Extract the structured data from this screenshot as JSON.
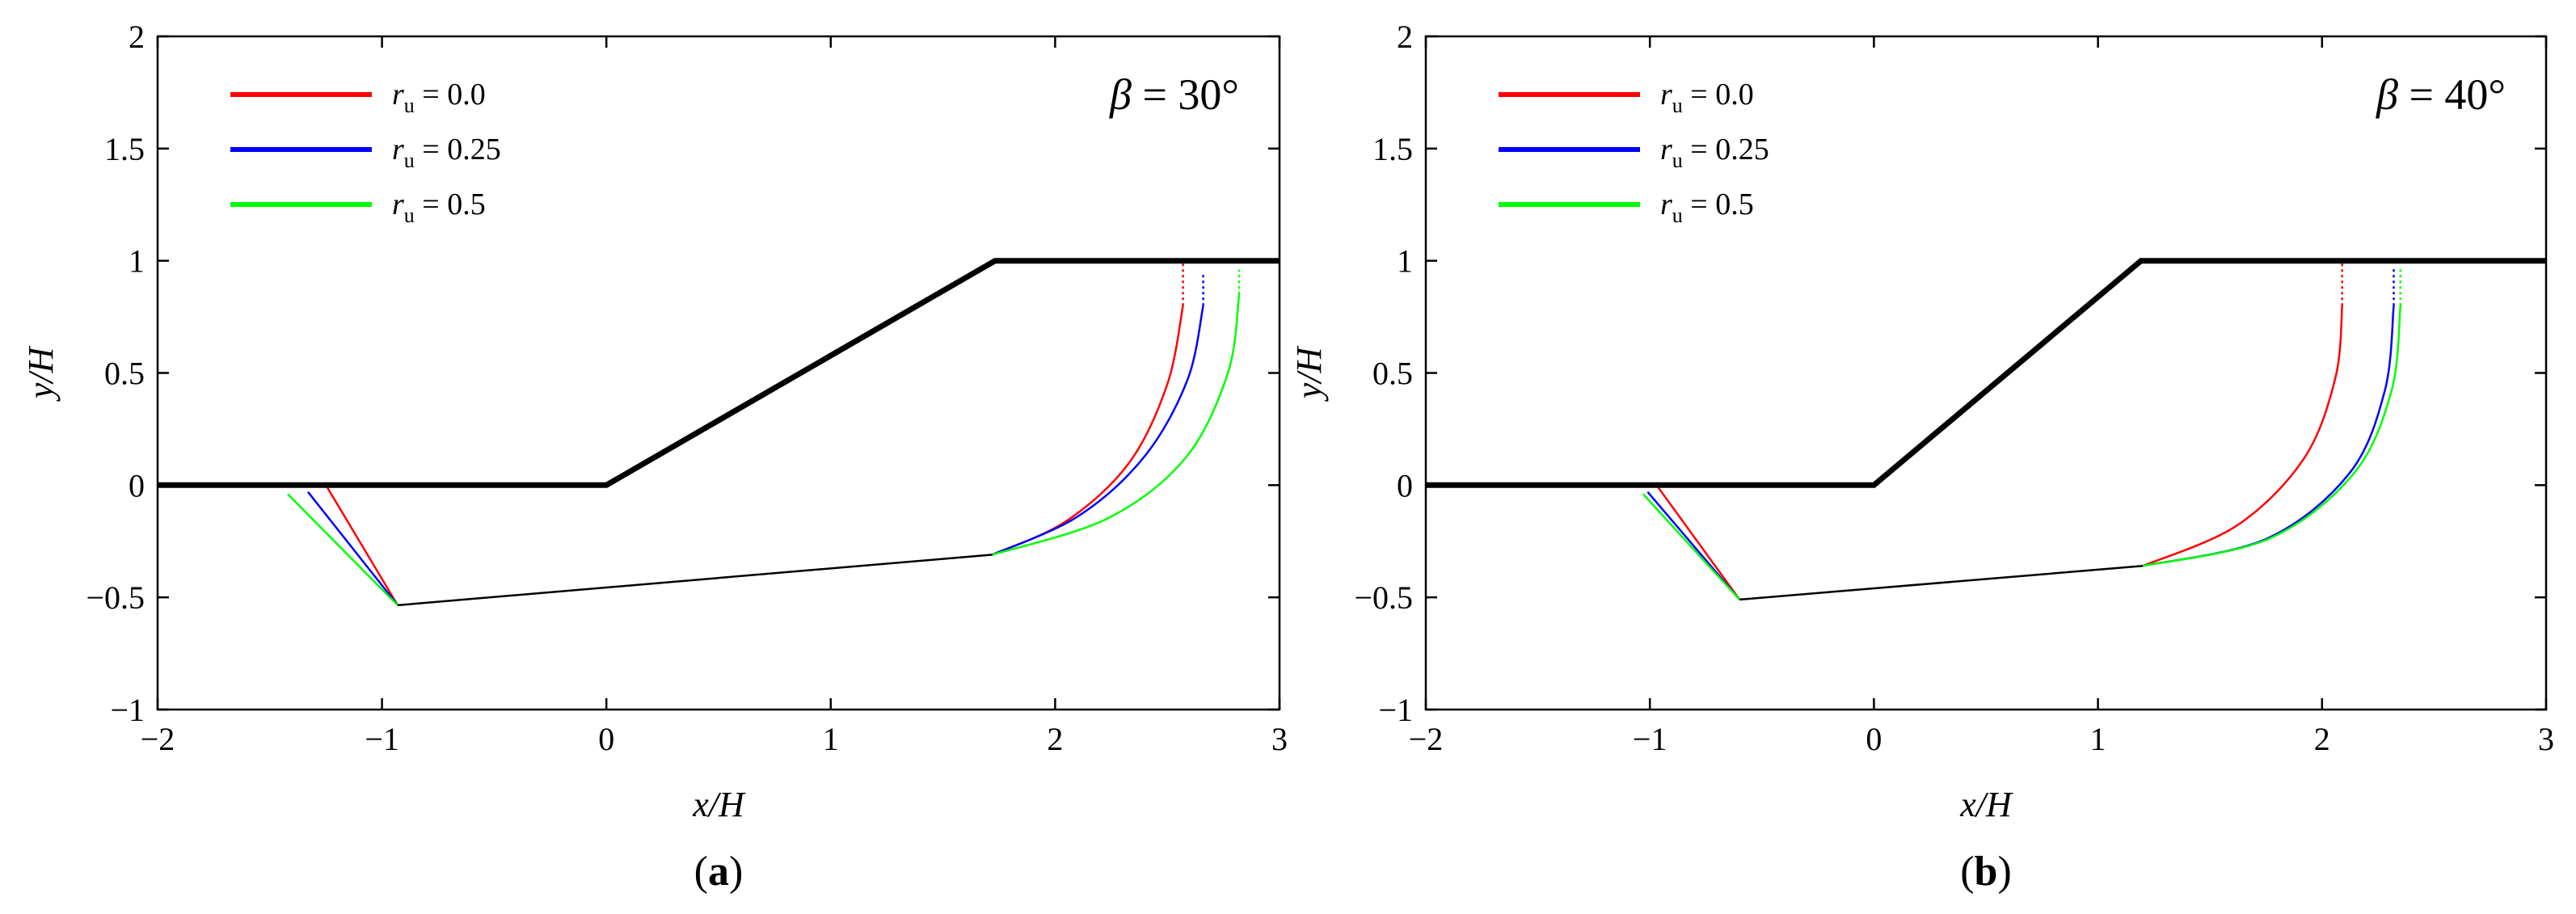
{
  "chart_data": [
    {
      "type": "line",
      "xlabel": "x/H",
      "ylabel": "y/H",
      "xlim": [
        -2,
        3
      ],
      "ylim": [
        -1,
        2
      ],
      "xticks": [
        -2,
        -1,
        0,
        1,
        2,
        3
      ],
      "yticks": [
        -1,
        -0.5,
        0,
        0.5,
        1,
        1.5,
        2
      ],
      "xtick_labels": [
        "−2",
        "−1",
        "0",
        "1",
        "2",
        "3"
      ],
      "ytick_labels": [
        "−1",
        "−0.5",
        "0",
        "0.5",
        "1",
        "1.5",
        "2"
      ],
      "annotation": {
        "symbol": "β",
        "text": " = 30°"
      },
      "panel_label": {
        "open": "(",
        "letter": "a",
        "close": ")"
      },
      "legend_position": "top-left",
      "slope": {
        "x": [
          -2,
          0,
          1.732,
          3
        ],
        "y": [
          0,
          0,
          1,
          1
        ]
      },
      "common_bottom": {
        "x": [
          -0.93,
          1.72
        ],
        "y": [
          -0.535,
          -0.31
        ]
      },
      "series": [
        {
          "name_symbol": "r",
          "name_sub": "u",
          "name_value": " = 0.0",
          "color": "#ff0000",
          "passive_wedge": {
            "x": [
              -1.25,
              -0.93
            ],
            "y": [
              0,
              -0.535
            ]
          },
          "spiral": {
            "x": [
              1.72,
              2.05,
              2.33,
              2.5,
              2.57
            ],
            "y": [
              -0.31,
              -0.16,
              0.1,
              0.45,
              0.8
            ]
          },
          "tension_crack": {
            "x": [
              2.57,
              2.57
            ],
            "y": [
              0.8,
              1.0
            ]
          }
        },
        {
          "name_symbol": "r",
          "name_sub": "u",
          "name_value": " = 0.25",
          "color": "#0000ff",
          "passive_wedge": {
            "x": [
              -1.33,
              -0.93
            ],
            "y": [
              -0.03,
              -0.535
            ]
          },
          "spiral": {
            "x": [
              1.72,
              2.1,
              2.4,
              2.59,
              2.66
            ],
            "y": [
              -0.31,
              -0.14,
              0.13,
              0.47,
              0.8
            ]
          },
          "tension_crack": {
            "x": [
              2.66,
              2.66
            ],
            "y": [
              0.8,
              0.94
            ]
          }
        },
        {
          "name_symbol": "r",
          "name_sub": "u",
          "name_value": " = 0.5",
          "color": "#00ff00",
          "passive_wedge": {
            "x": [
              -1.42,
              -0.93
            ],
            "y": [
              -0.04,
              -0.535
            ]
          },
          "spiral": {
            "x": [
              1.72,
              2.23,
              2.58,
              2.77,
              2.82
            ],
            "y": [
              -0.31,
              -0.15,
              0.12,
              0.5,
              0.85
            ]
          },
          "tension_crack": {
            "x": [
              2.82,
              2.82
            ],
            "y": [
              0.85,
              0.96
            ]
          }
        }
      ]
    },
    {
      "type": "line",
      "xlabel": "x/H",
      "ylabel": "y/H",
      "xlim": [
        -2,
        3
      ],
      "ylim": [
        -1,
        2
      ],
      "xticks": [
        -2,
        -1,
        0,
        1,
        2,
        3
      ],
      "yticks": [
        -1,
        -0.5,
        0,
        0.5,
        1,
        1.5,
        2
      ],
      "xtick_labels": [
        "−2",
        "−1",
        "0",
        "1",
        "2",
        "3"
      ],
      "ytick_labels": [
        "−1",
        "−0.5",
        "0",
        "0.5",
        "1",
        "1.5",
        "2"
      ],
      "annotation": {
        "symbol": "β",
        "text": " = 40°"
      },
      "panel_label": {
        "open": "(",
        "letter": "b",
        "close": ")"
      },
      "legend_position": "top-left",
      "slope": {
        "x": [
          -2,
          0,
          1.192,
          3
        ],
        "y": [
          0,
          0,
          1,
          1
        ]
      },
      "common_bottom": {
        "x": [
          -0.6,
          1.2
        ],
        "y": [
          -0.51,
          -0.36
        ]
      },
      "series": [
        {
          "name_symbol": "r",
          "name_sub": "u",
          "name_value": " = 0.0",
          "color": "#ff0000",
          "passive_wedge": {
            "x": [
              -0.97,
              -0.6
            ],
            "y": [
              0,
              -0.51
            ]
          },
          "spiral": {
            "x": [
              1.2,
              1.62,
              1.92,
              2.06,
              2.09
            ],
            "y": [
              -0.36,
              -0.18,
              0.12,
              0.48,
              0.8
            ]
          },
          "tension_crack": {
            "x": [
              2.09,
              2.09
            ],
            "y": [
              0.8,
              1.0
            ]
          }
        },
        {
          "name_symbol": "r",
          "name_sub": "u",
          "name_value": " = 0.25",
          "color": "#0000ff",
          "passive_wedge": {
            "x": [
              -1.01,
              -0.6
            ],
            "y": [
              -0.03,
              -0.51
            ]
          },
          "spiral": {
            "x": [
              1.2,
              1.75,
              2.12,
              2.28,
              2.32
            ],
            "y": [
              -0.36,
              -0.24,
              0.05,
              0.42,
              0.8
            ]
          },
          "tension_crack": {
            "x": [
              2.32,
              2.32
            ],
            "y": [
              0.8,
              0.97
            ]
          }
        },
        {
          "name_symbol": "r",
          "name_sub": "u",
          "name_value": " = 0.5",
          "color": "#00ff00",
          "passive_wedge": {
            "x": [
              -1.03,
              -0.6
            ],
            "y": [
              -0.04,
              -0.51
            ]
          },
          "spiral": {
            "x": [
              1.2,
              1.76,
              2.14,
              2.31,
              2.35
            ],
            "y": [
              -0.36,
              -0.24,
              0.05,
              0.42,
              0.8
            ]
          },
          "tension_crack": {
            "x": [
              2.35,
              2.35
            ],
            "y": [
              0.8,
              0.97
            ]
          }
        }
      ]
    }
  ]
}
